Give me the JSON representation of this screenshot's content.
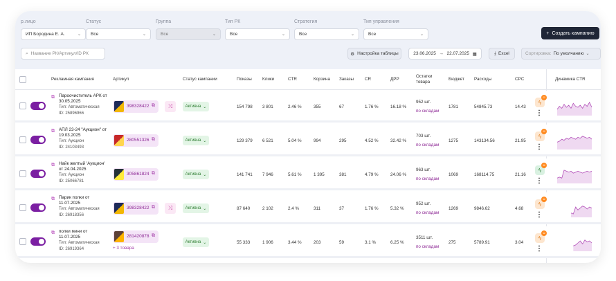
{
  "filters": [
    {
      "label": "р.лицо",
      "value": "ИП Бородина Е. А.",
      "disabled": false
    },
    {
      "label": "Статус",
      "value": "Все",
      "disabled": false
    },
    {
      "label": "Группа",
      "value": "Все",
      "disabled": true
    },
    {
      "label": "Тип РК",
      "value": "Все",
      "disabled": false
    },
    {
      "label": "Стратегия",
      "value": "Все",
      "disabled": false
    },
    {
      "label": "Тип управления",
      "value": "Все",
      "disabled": false
    }
  ],
  "create_button": "Создать кампанию",
  "search": {
    "placeholder": "Название РК/Артикул/ID РК"
  },
  "table_settings": "Настройка таблицы",
  "date_from": "23.06.2025",
  "date_arrow": "→",
  "date_to": "22.07.2025",
  "excel": "Excel",
  "sort": {
    "label": "Сортировка:",
    "value": "По умолчанию"
  },
  "columns": [
    "Рекламная кампания",
    "Артикул",
    "Статус кампании",
    "Показы",
    "Клики",
    "CTR",
    "Корзина",
    "Заказы",
    "CR",
    "ДРР",
    "Остатки товара",
    "Бюджет",
    "Расходы",
    "CPC",
    "Динамика CTR"
  ],
  "rows": [
    {
      "name": "Пароочиститель АРК от 30.05.2025",
      "type": "Тип: Автоматическая",
      "id": "ID: 25896966",
      "article": "398328422",
      "shuffle": true,
      "status": "Активна",
      "shows": "154 798",
      "clicks": "3 801",
      "ctr": "2.46 %",
      "cart": "355",
      "orders": "67",
      "cr": "1.76 %",
      "drr": "16.18 %",
      "stock": "952 шт.",
      "stock_link": "по складам",
      "budget": "1781",
      "spend": "54845.73",
      "cpc": "14.43",
      "bolt": "orange",
      "spark": [
        5,
        8,
        6,
        10,
        7,
        9,
        6,
        11,
        8,
        7,
        9,
        6,
        10,
        8,
        12,
        7
      ]
    },
    {
      "name": "АПЛ 23-24 \"Аукцион\" от 19.03.2025",
      "type": "Тип: Аукцион",
      "id": "ID: 24103493",
      "article": "280551326",
      "shuffle": false,
      "status": "Активна",
      "shows": "129 379",
      "clicks": "6 521",
      "ctr": "5.04 %",
      "cart": "994",
      "orders": "295",
      "cr": "4.52 %",
      "drr": "32.42 %",
      "stock": "703 шт.",
      "stock_link": "по складам",
      "budget": "1275",
      "spend": "143134.56",
      "cpc": "21.95",
      "bolt": "orange",
      "spark": [
        6,
        7,
        9,
        8,
        10,
        9,
        11,
        10,
        9,
        11,
        10,
        12,
        11,
        10,
        11,
        9
      ]
    },
    {
      "name": "Найк желтый 'Аукцион' от 24.04.2025",
      "type": "Тип: Аукцион",
      "id": "ID: 25066781",
      "article": "305861824",
      "shuffle": false,
      "status": "Активна",
      "shows": "141 741",
      "clicks": "7 946",
      "ctr": "5.61 %",
      "cart": "1 395",
      "orders": "381",
      "cr": "4.79 %",
      "drr": "24.06 %",
      "stock": "963 шт.",
      "stock_link": "по складам",
      "budget": "1069",
      "spend": "168114.75",
      "cpc": "21.16",
      "bolt": "green",
      "spark": [
        4,
        5,
        4,
        12,
        11,
        10,
        11,
        9,
        10,
        11,
        10,
        9,
        10,
        11,
        10,
        11
      ]
    },
    {
      "name": "Парик полки от 11.07.2025",
      "type": "Тип: Автоматическая",
      "id": "ID: 26918356",
      "article": "398328422",
      "shuffle": true,
      "status": "Активна",
      "shows": "87 640",
      "clicks": "2 102",
      "ctr": "2.4 %",
      "cart": "311",
      "orders": "37",
      "cr": "1.76 %",
      "drr": "5.32 %",
      "stock": "952 шт.",
      "stock_link": "по складам",
      "budget": "1269",
      "spend": "9846.62",
      "cpc": "4.68",
      "bolt": "orange",
      "spark": [
        0,
        0,
        0,
        0,
        0,
        0,
        3,
        2,
        9,
        6,
        8,
        10,
        9,
        7,
        9,
        8
      ]
    },
    {
      "name": "полки мини от 11.07.2025",
      "type": "Тип: Автоматическая",
      "id": "ID: 26919364",
      "article": "281420878",
      "more": "+ 3 товара",
      "shuffle": false,
      "status": "Активна",
      "shows": "55 333",
      "clicks": "1 906",
      "ctr": "3.44 %",
      "cart": "203",
      "orders": "59",
      "cr": "3.1 %",
      "drr": "6.25 %",
      "stock": "3511 шт.",
      "stock_link": "по складам",
      "budget": "275",
      "spend": "5789.91",
      "cpc": "3.04",
      "bolt": "orange",
      "spark": [
        0,
        0,
        0,
        0,
        0,
        0,
        0,
        4,
        5,
        7,
        9,
        6,
        10,
        8,
        9,
        7
      ]
    }
  ],
  "colors": {
    "accent": "#7b1fa2",
    "dark_button": "#1f2636",
    "status_bg": "#e3f5e6",
    "status_text": "#2e7d32",
    "link": "#8e2a96"
  }
}
